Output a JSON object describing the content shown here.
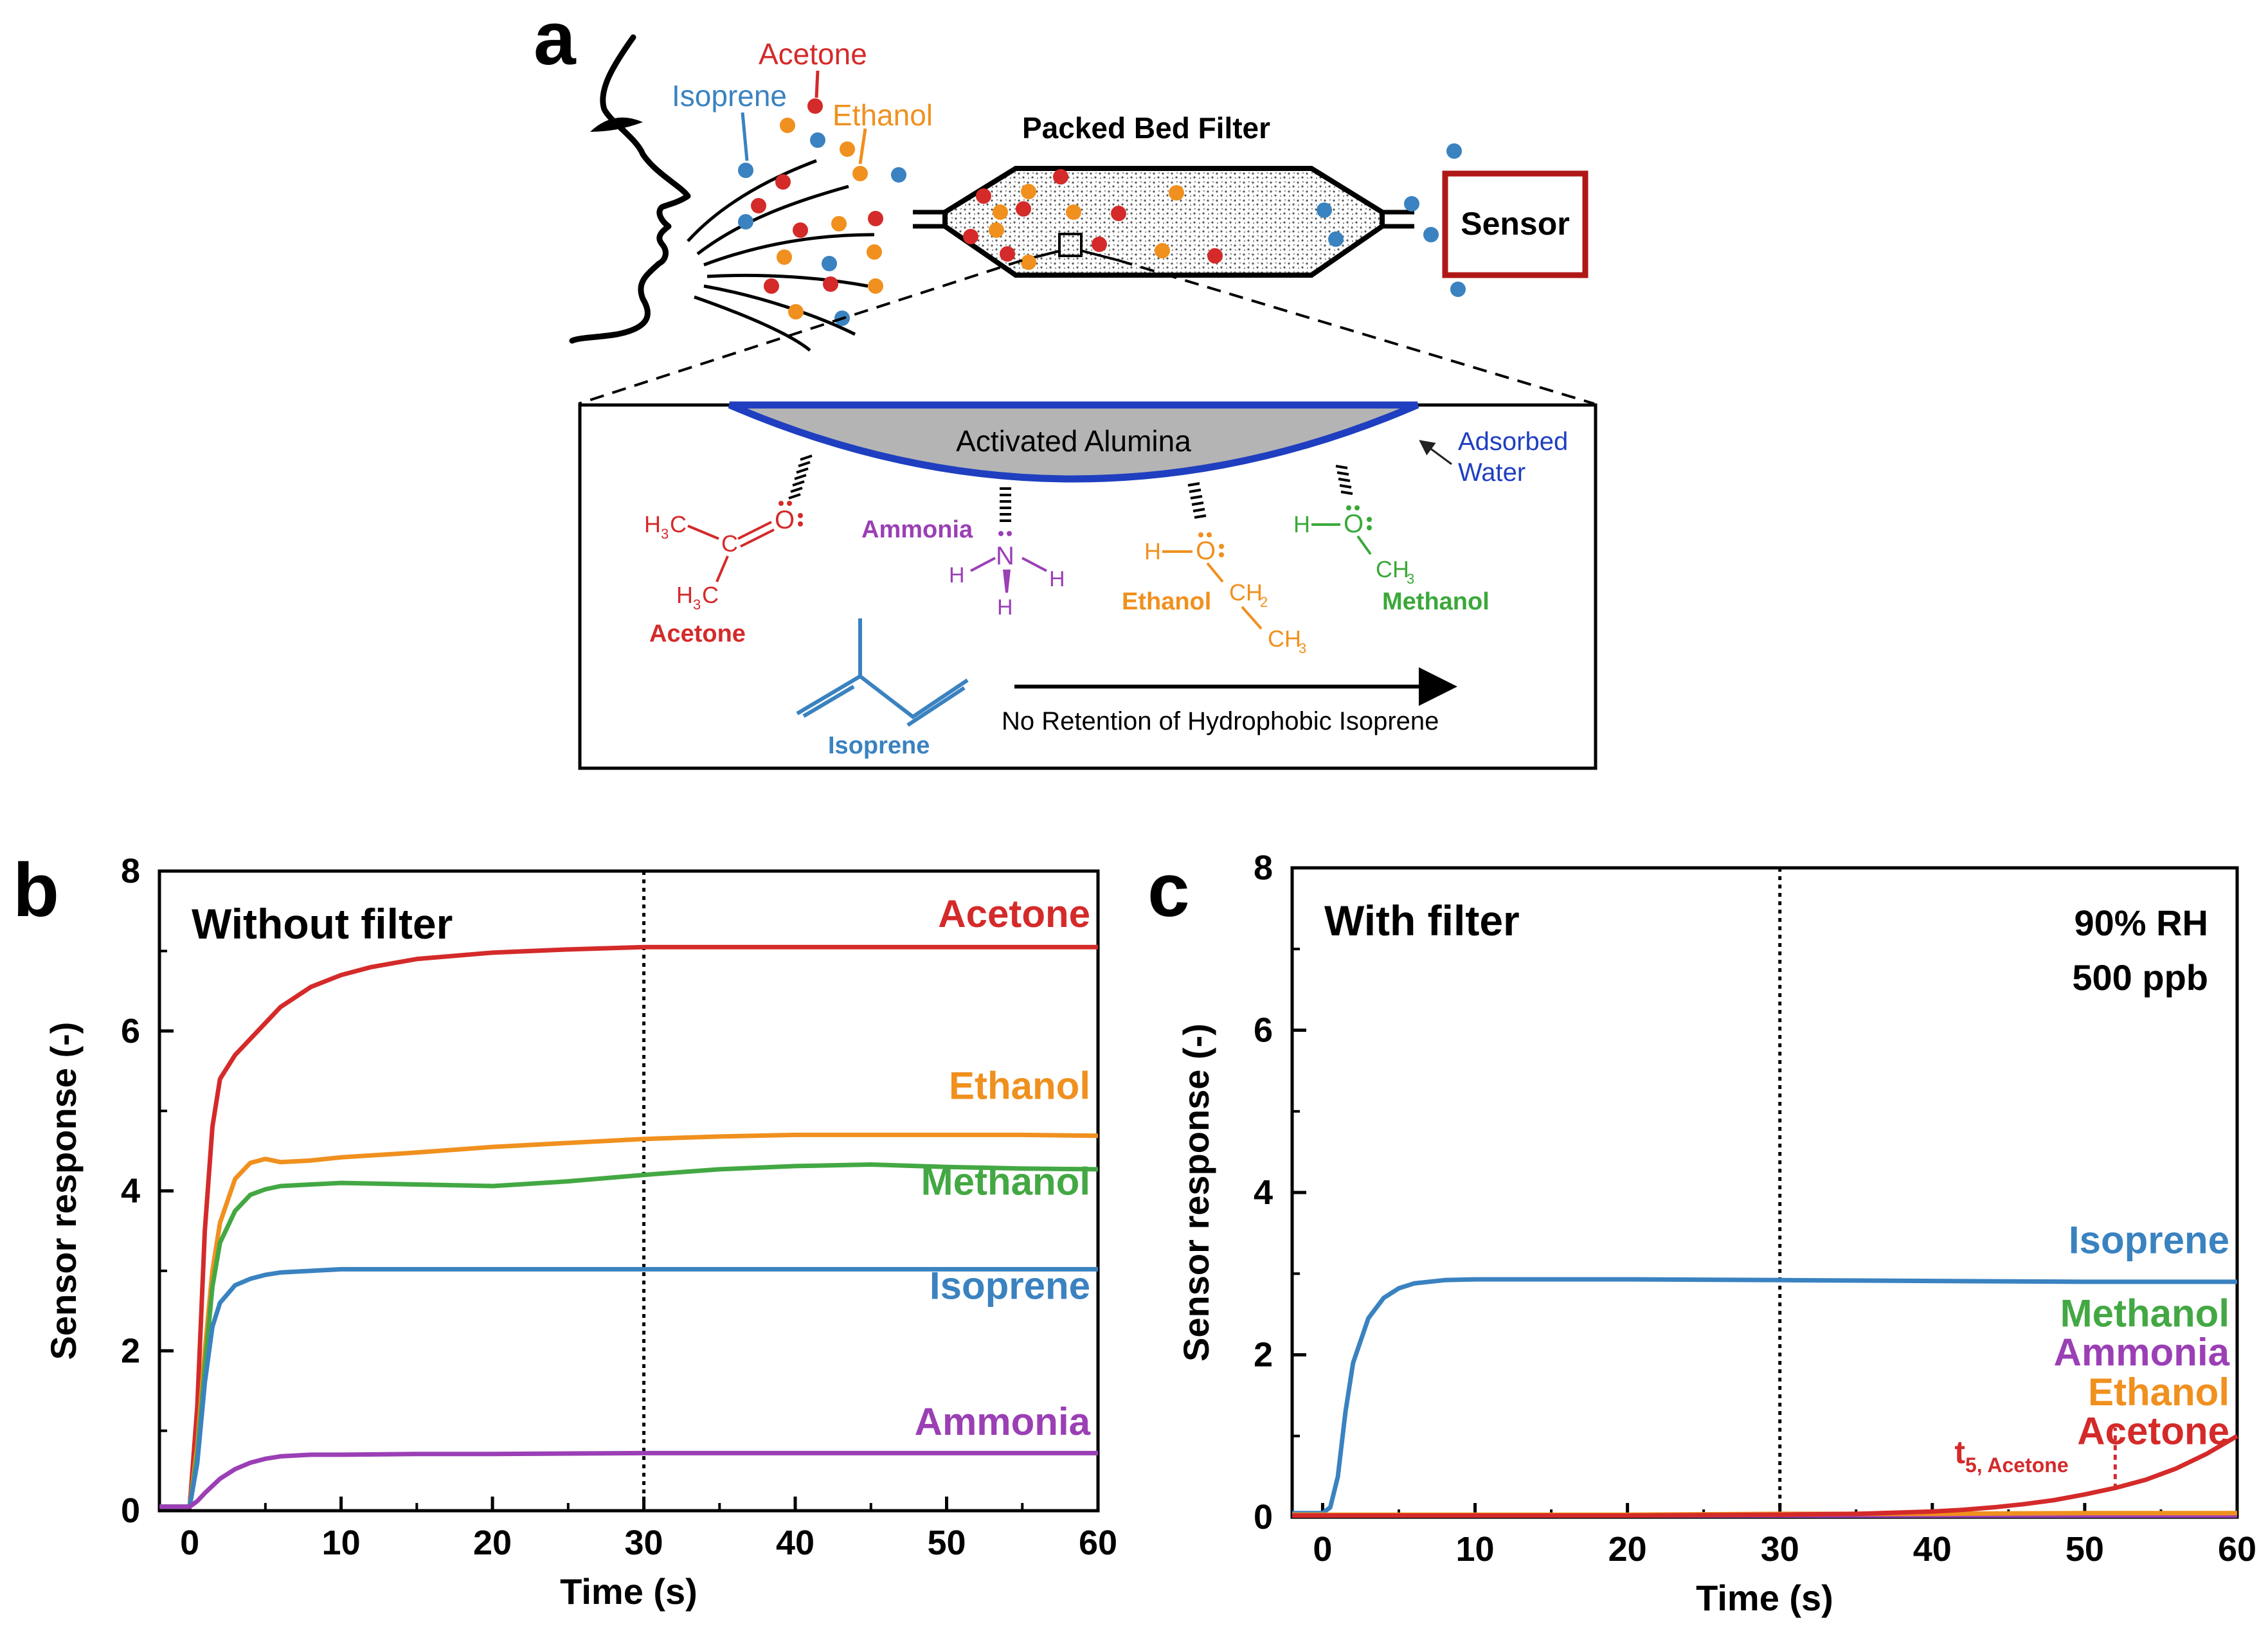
{
  "panel_a": {
    "panel_label": "a",
    "gas_labels": {
      "acetone": "Acetone",
      "isoprene": "Isoprene",
      "ethanol": "Ethanol"
    },
    "filter_title": "Packed Bed Filter",
    "sensor_label": "Sensor",
    "alumina_label": "Activated Alumina",
    "water_label_1": "Adsorbed",
    "water_label_2": "Water",
    "retention_text": "No Retention of Hydrophobic Isoprene",
    "molecules": {
      "acetone": "Acetone",
      "ammonia": "Ammonia",
      "ethanol": "Ethanol",
      "methanol": "Methanol",
      "isoprene": "Isoprene"
    },
    "atoms": {
      "h3c": "H",
      "c": "C",
      "o": "O",
      "n": "N",
      "h": "H",
      "ch": "CH",
      "sub3": "3",
      "sub2": "2"
    },
    "colors": {
      "acetone": "#d42a2a",
      "isoprene": "#3a82c0",
      "ethanol": "#f0901e",
      "methanol": "#3aa83a",
      "ammonia": "#9b3fb5",
      "water": "#1f3fc0",
      "sensor_box": "#b01818"
    }
  },
  "chart_data": [
    {
      "panel_label": "b",
      "type": "line",
      "title": "Without filter",
      "xlabel": "Time (s)",
      "ylabel": "Sensor response (-)",
      "xlim": [
        -2,
        60
      ],
      "ylim": [
        0,
        8
      ],
      "xticks": [
        0,
        10,
        20,
        30,
        40,
        50,
        60
      ],
      "yticks": [
        0,
        2,
        4,
        6,
        8
      ],
      "vline_x": 30,
      "annotations": [],
      "series": [
        {
          "name": "Acetone",
          "color": "#d42a2a",
          "x": [
            -2,
            0,
            0.5,
            1,
            1.5,
            2,
            3,
            4,
            5,
            6,
            8,
            10,
            12,
            15,
            20,
            25,
            30,
            35,
            40,
            45,
            50,
            55,
            60
          ],
          "y": [
            0.05,
            0.05,
            1.3,
            3.5,
            4.8,
            5.4,
            5.7,
            5.9,
            6.1,
            6.3,
            6.55,
            6.7,
            6.8,
            6.9,
            6.98,
            7.02,
            7.05,
            7.05,
            7.05,
            7.05,
            7.05,
            7.05,
            7.05
          ]
        },
        {
          "name": "Ethanol",
          "color": "#f0901e",
          "x": [
            -2,
            0,
            0.5,
            1,
            1.5,
            2,
            3,
            4,
            5,
            6,
            8,
            10,
            15,
            20,
            25,
            30,
            35,
            40,
            45,
            50,
            55,
            60
          ],
          "y": [
            0.05,
            0.05,
            0.8,
            2.0,
            3.0,
            3.6,
            4.15,
            4.35,
            4.4,
            4.36,
            4.38,
            4.42,
            4.48,
            4.55,
            4.6,
            4.65,
            4.68,
            4.7,
            4.7,
            4.7,
            4.7,
            4.69
          ]
        },
        {
          "name": "Methanol",
          "color": "#43a843",
          "x": [
            -2,
            0,
            0.5,
            1,
            1.5,
            2,
            3,
            4,
            5,
            6,
            8,
            10,
            15,
            20,
            25,
            30,
            35,
            40,
            45,
            50,
            55,
            60
          ],
          "y": [
            0.05,
            0.05,
            0.7,
            1.8,
            2.8,
            3.35,
            3.75,
            3.95,
            4.02,
            4.06,
            4.08,
            4.1,
            4.08,
            4.06,
            4.12,
            4.2,
            4.27,
            4.31,
            4.33,
            4.3,
            4.28,
            4.27
          ]
        },
        {
          "name": "Isoprene",
          "color": "#3a82c0",
          "x": [
            -2,
            0,
            0.5,
            1,
            1.5,
            2,
            3,
            4,
            5,
            6,
            8,
            10,
            15,
            20,
            25,
            30,
            35,
            40,
            45,
            50,
            55,
            60
          ],
          "y": [
            0.05,
            0.05,
            0.6,
            1.6,
            2.3,
            2.6,
            2.82,
            2.9,
            2.95,
            2.98,
            3.0,
            3.02,
            3.02,
            3.02,
            3.02,
            3.02,
            3.02,
            3.02,
            3.02,
            3.02,
            3.02,
            3.02
          ]
        },
        {
          "name": "Ammonia",
          "color": "#9b3fb5",
          "x": [
            -2,
            0,
            0.5,
            1,
            2,
            3,
            4,
            5,
            6,
            8,
            10,
            15,
            20,
            30,
            40,
            50,
            60
          ],
          "y": [
            0.05,
            0.05,
            0.12,
            0.22,
            0.4,
            0.52,
            0.6,
            0.65,
            0.68,
            0.7,
            0.7,
            0.71,
            0.71,
            0.72,
            0.72,
            0.72,
            0.72
          ]
        }
      ],
      "labels": [
        {
          "text": "Acetone",
          "color": "#d42a2a",
          "y": 7.3
        },
        {
          "text": "Ethanol",
          "color": "#f0901e",
          "y": 5.15
        },
        {
          "text": "Methanol",
          "color": "#43a843",
          "y": 3.95
        },
        {
          "text": "Isoprene",
          "color": "#3a82c0",
          "y": 2.65
        },
        {
          "text": "Ammonia",
          "color": "#9b3fb5",
          "y": 0.95
        }
      ]
    },
    {
      "panel_label": "c",
      "type": "line",
      "title": "With filter",
      "xlabel": "Time (s)",
      "ylabel": "Sensor response (-)",
      "xlim": [
        -2,
        60
      ],
      "ylim": [
        0,
        8
      ],
      "xticks": [
        0,
        10,
        20,
        30,
        40,
        50,
        60
      ],
      "yticks": [
        0,
        2,
        4,
        6,
        8
      ],
      "vline_x": 30,
      "conditions": [
        "90% RH",
        "500 ppb"
      ],
      "annotations": [
        {
          "text": "t",
          "subscript": "5, Acetone",
          "x": 52,
          "y": 0.35
        }
      ],
      "series": [
        {
          "name": "Isoprene",
          "color": "#3a82c0",
          "x": [
            -2,
            0,
            0.5,
            1,
            1.5,
            2,
            3,
            4,
            5,
            6,
            8,
            10,
            15,
            20,
            30,
            40,
            50,
            60
          ],
          "y": [
            0.05,
            0.05,
            0.12,
            0.5,
            1.3,
            1.9,
            2.45,
            2.7,
            2.82,
            2.88,
            2.92,
            2.93,
            2.93,
            2.93,
            2.92,
            2.91,
            2.9,
            2.9
          ]
        },
        {
          "name": "Methanol",
          "color": "#43a843",
          "x": [
            -2,
            0,
            10,
            20,
            30,
            40,
            50,
            60
          ],
          "y": [
            0.02,
            0.02,
            0.02,
            0.02,
            0.02,
            0.03,
            0.03,
            0.03
          ]
        },
        {
          "name": "Ammonia",
          "color": "#9b3fb5",
          "x": [
            -2,
            0,
            10,
            20,
            30,
            40,
            50,
            60
          ],
          "y": [
            0.02,
            0.02,
            0.02,
            0.02,
            0.02,
            0.02,
            0.02,
            0.02
          ]
        },
        {
          "name": "Ethanol",
          "color": "#f0901e",
          "x": [
            -2,
            0,
            10,
            20,
            30,
            40,
            50,
            60
          ],
          "y": [
            0.03,
            0.03,
            0.03,
            0.03,
            0.04,
            0.04,
            0.05,
            0.05
          ]
        },
        {
          "name": "Acetone",
          "color": "#d42a2a",
          "x": [
            -2,
            0,
            10,
            20,
            30,
            35,
            40,
            42,
            44,
            46,
            48,
            50,
            52,
            54,
            56,
            58,
            60
          ],
          "y": [
            0.02,
            0.02,
            0.02,
            0.02,
            0.03,
            0.04,
            0.07,
            0.09,
            0.12,
            0.16,
            0.21,
            0.28,
            0.36,
            0.46,
            0.6,
            0.78,
            1.0
          ]
        }
      ],
      "labels": [
        {
          "text": "Isoprene",
          "color": "#3a82c0",
          "y": 3.25
        },
        {
          "text": "Methanol",
          "color": "#43a843",
          "y": 2.35
        },
        {
          "text": "Ammonia",
          "color": "#9b3fb5",
          "y": 1.87
        },
        {
          "text": "Ethanol",
          "color": "#f0901e",
          "y": 1.38
        },
        {
          "text": "Acetone",
          "color": "#d42a2a",
          "y": 0.9
        }
      ]
    }
  ]
}
